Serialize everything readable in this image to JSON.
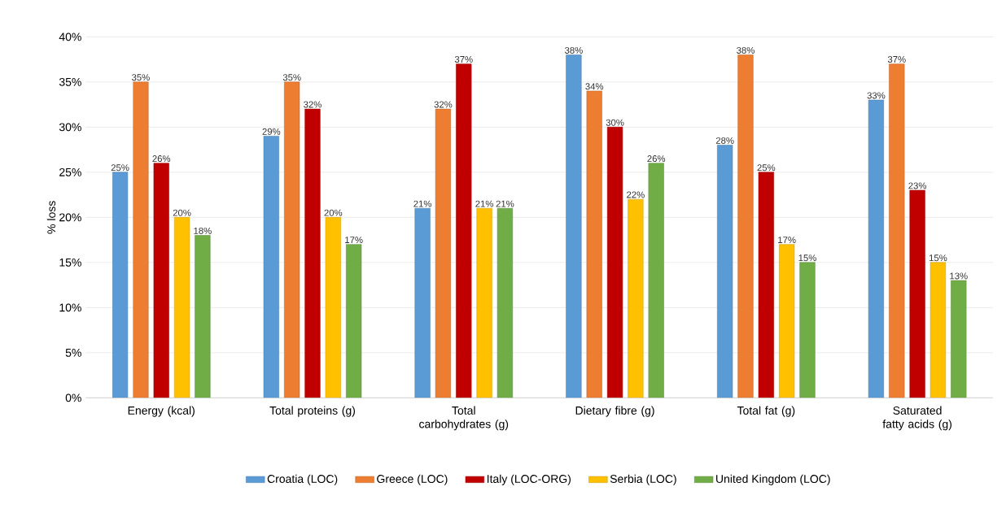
{
  "chart_data": {
    "type": "bar",
    "ylabel": "% loss",
    "categories": [
      "Energy (kcal)",
      "Total proteins (g)",
      "Total carbohydrates (g)",
      "Dietary fibre (g)",
      "Total fat (g)",
      "Saturated fatty acids (g)"
    ],
    "series": [
      {
        "name": "Croatia (LOC)",
        "color": "#5b9bd5",
        "values": [
          25,
          29,
          21,
          38,
          28,
          33
        ],
        "value_labels": [
          "25%",
          "29%",
          "21%",
          "38%",
          "28%",
          "33%"
        ]
      },
      {
        "name": "Greece (LOC)",
        "color": "#ed7d31",
        "values": [
          35,
          35,
          32,
          34,
          38,
          37
        ],
        "value_labels": [
          "35%",
          "35%",
          "32%",
          "34%",
          "38%",
          "37%"
        ]
      },
      {
        "name": "Italy (LOC-ORG)",
        "color": "#c00000",
        "values": [
          26,
          32,
          37,
          30,
          25,
          23
        ],
        "value_labels": [
          "26%",
          "32%",
          "37%",
          "30%",
          "25%",
          "23%"
        ]
      },
      {
        "name": "Serbia (LOC)",
        "color": "#ffc000",
        "values": [
          20,
          20,
          21,
          22,
          17,
          15
        ],
        "value_labels": [
          "20%",
          "20%",
          "21%",
          "22%",
          "17%",
          "15%"
        ]
      },
      {
        "name": "United Kingdom (LOC)",
        "color": "#70ad47",
        "values": [
          18,
          17,
          21,
          26,
          15,
          13
        ],
        "value_labels": [
          "18%",
          "17%",
          "21%",
          "26%",
          "15%",
          "13%"
        ]
      }
    ],
    "ylim": [
      0,
      40
    ],
    "yticks": [
      {
        "value": 0,
        "label": "0%"
      },
      {
        "value": 5,
        "label": "5%"
      },
      {
        "value": 10,
        "label": "10%"
      },
      {
        "value": 15,
        "label": "15%"
      },
      {
        "value": 20,
        "label": "20%"
      },
      {
        "value": 25,
        "label": "25%"
      },
      {
        "value": 30,
        "label": "30%"
      },
      {
        "value": 35,
        "label": "35%"
      },
      {
        "value": 40,
        "label": "40%"
      }
    ],
    "grid": "y",
    "legend": "bottom"
  }
}
